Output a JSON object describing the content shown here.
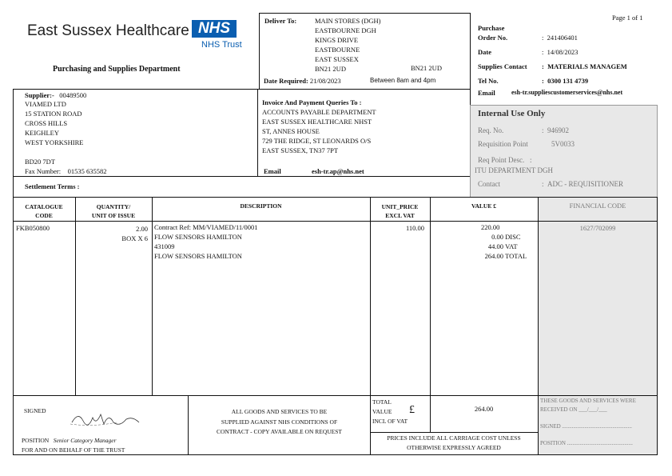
{
  "header": {
    "org_name": "East Sussex Healthcare",
    "nhs_logo": "NHS",
    "trust": "NHS Trust",
    "department": "Purchasing and Supplies Department",
    "page": "Page 1 of 1"
  },
  "deliver": {
    "label": "Deliver To:",
    "lines": [
      "MAIN STORES (DGH)",
      "EASTBOURNE DGH",
      "KINGS DRIVE",
      "EASTBOURNE",
      "EAST SUSSEX",
      "BN21 2UD"
    ],
    "postcode2": "BN21 2UD",
    "date_label": "Date Required:",
    "date": "21/08/2023",
    "window": "Between 8am and 4pm"
  },
  "order": {
    "po_label1": "Purchase",
    "po_label2": "Order No.",
    "po": "241406401",
    "date_label": "Date",
    "date": "14/08/2023",
    "contact_label": "Supplies Contact",
    "contact": "MATERIALS MANAGEM",
    "tel_label": "Tel No.",
    "tel": "0300 131 4739",
    "email_label": "Email",
    "email": "esh-tr.suppliescustomerservices@nhs.net",
    "colon": ":"
  },
  "supplier": {
    "label": "Supplier:-",
    "code": "00489500",
    "lines": [
      "VIAMED LTD",
      "15 STATION ROAD",
      "CROSS HILLS",
      "KEIGHLEY",
      "WEST YORKSHIRE"
    ],
    "postcode": "BD20 7DT",
    "fax_label": "Fax Number:",
    "fax": "01535 635582"
  },
  "invoice": {
    "label": "Invoice And Payment Queries To :",
    "lines": [
      "ACCOUNTS PAYABLE DEPARTMENT",
      "EAST SUSSEX HEALTHCARE NHST",
      "ST, ANNES HOUSE",
      "729 THE RIDGE, ST LEONARDS O/S",
      "EAST SUSSEX, TN37 7PT"
    ],
    "email_label": "Email",
    "email": "esh-tr.ap@nhs.net"
  },
  "settlement": {
    "label": "Settlement Terms :"
  },
  "internal": {
    "title": "Internal Use Only",
    "req_label": "Req. No.",
    "req": "946902",
    "point_label": "Requisition Point",
    "point": "5V0033",
    "desc_label": "Req Point Desc.",
    "desc": "ITU DEPARTMENT DGH",
    "contact_label": "Contact",
    "contact": "ADC - REQUISITIONER"
  },
  "table": {
    "headers": {
      "cat1": "CATALOGUE",
      "cat2": "CODE",
      "qty1": "QUANTITY/",
      "qty2": "UNIT OF ISSUE",
      "desc": "DESCRIPTION",
      "price1": "UNIT_PRICE",
      "price2": "EXCL VAT",
      "value": "VALUE £",
      "fin": "FINANCIAL CODE"
    },
    "row": {
      "code": "FKB050800",
      "qty": "2.00",
      "unit": "BOX X 6",
      "desc": [
        "Contract Ref: MM/VIAMED/11/0001",
        "FLOW SENSORS HAMILTON",
        "431009",
        "FLOW SENSORS HAMILTON"
      ],
      "price": "110.00",
      "value": "220.00",
      "disc": "0.00",
      "disc_label": "DISC",
      "vat": "44.00",
      "vat_label": "VAT",
      "total": "264.00",
      "total_label": "TOTAL",
      "fin": "1627/702099"
    }
  },
  "footer": {
    "signed": "SIGNED",
    "position_label": "POSITION",
    "position": "Senior Category Manager",
    "behalf": "FOR AND ON BEHALF OF THE TRUST",
    "terms": [
      "ALL GOODS AND SERVICES TO BE",
      "SUPPLIED AGAINST NHS CONDITIONS OF",
      "CONTRACT - COPY AVAILABLE ON REQUEST"
    ],
    "total_lines": [
      "TOTAL",
      "VALUE",
      "INCL OF VAT"
    ],
    "currency": "£",
    "total": "264.00",
    "prices": [
      "PRICES INCLUDE ALL CARRIAGE COST UNLESS",
      "OTHERWISE EXPRESSLY AGREED"
    ],
    "received": [
      "THESE GOODS AND SERVICES WERE",
      "RECEIVED ON ___/___/___"
    ],
    "recv_signed": "SIGNED ..................................................",
    "recv_position": "POSITION ..............................................."
  }
}
